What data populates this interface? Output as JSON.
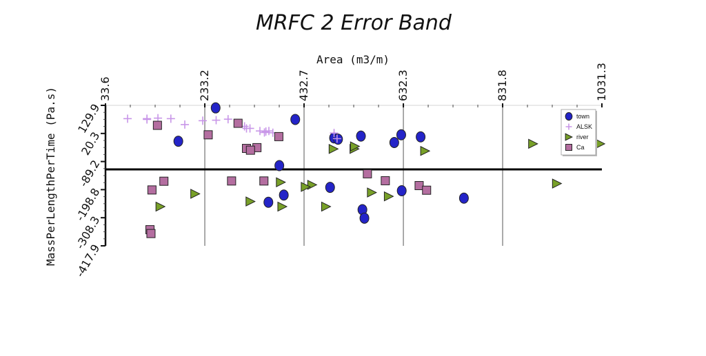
{
  "chart_data": {
    "type": "scatter",
    "title": "MRFC 2 Error Band",
    "xlabel": "Area (m3/m)",
    "ylabel": "MassPerLengthPerTime (Pa.s)",
    "xlim": [
      33.6,
      1031.3
    ],
    "ylim": [
      -417.9,
      129.9
    ],
    "x_ticks": [
      "33.6",
      "233.2",
      "432.7",
      "632.3",
      "831.8",
      "1031.3"
    ],
    "y_ticks": [
      "129.9",
      "20.3",
      "-89.2",
      "-198.8",
      "-308.3",
      "-417.9"
    ],
    "reference_line_y": -120,
    "legend": {
      "position": "top-right"
    },
    "series": [
      {
        "name": "town",
        "marker": "circle",
        "color": "#2424c8",
        "x": [
          255,
          415,
          180,
          383,
          493,
          501,
          547,
          628,
          667,
          614,
          983,
          392,
          361,
          485,
          629,
          754,
          550,
          554
        ],
        "y": [
          120,
          75,
          -10,
          -105,
          3,
          -2,
          10,
          15,
          7,
          -15,
          32,
          -220,
          -248,
          -190,
          -203,
          -232,
          -277,
          -310
        ]
      },
      {
        "name": "ALSK",
        "marker": "plus",
        "color": "#c896e8",
        "x": [
          78,
          117,
          117,
          139,
          165,
          193,
          229,
          256,
          280,
          317,
          313,
          324,
          344,
          362,
          353,
          356,
          370,
          493,
          499
        ],
        "y": [
          78,
          75,
          78,
          80,
          78,
          55,
          70,
          72,
          76,
          40,
          48,
          40,
          30,
          30,
          24,
          28,
          23,
          22,
          0
        ]
      },
      {
        "name": "river",
        "marker": "triangle",
        "color": "#78a028",
        "x": [
          893,
          492,
          534,
          535,
          676,
          1028,
          214,
          144,
          386,
          325,
          449,
          436,
          389,
          603,
          569,
          477,
          941
        ],
        "y": [
          -20,
          -40,
          -40,
          -30,
          -48,
          -20,
          -215,
          -265,
          -170,
          -245,
          -180,
          -188,
          -265,
          -225,
          -210,
          -265,
          -175
        ]
      },
      {
        "name": "Ca",
        "marker": "square",
        "color": "#b46ea0",
        "x": [
          138,
          300,
          240,
          338,
          317,
          325,
          382,
          151,
          127,
          287,
          352,
          560,
          596,
          664,
          679,
          123,
          125
        ],
        "y": [
          52,
          60,
          15,
          -35,
          -38,
          -45,
          8,
          -166,
          -200,
          -165,
          -165,
          -137,
          -164,
          -183,
          -201,
          -355,
          -370
        ]
      }
    ]
  }
}
